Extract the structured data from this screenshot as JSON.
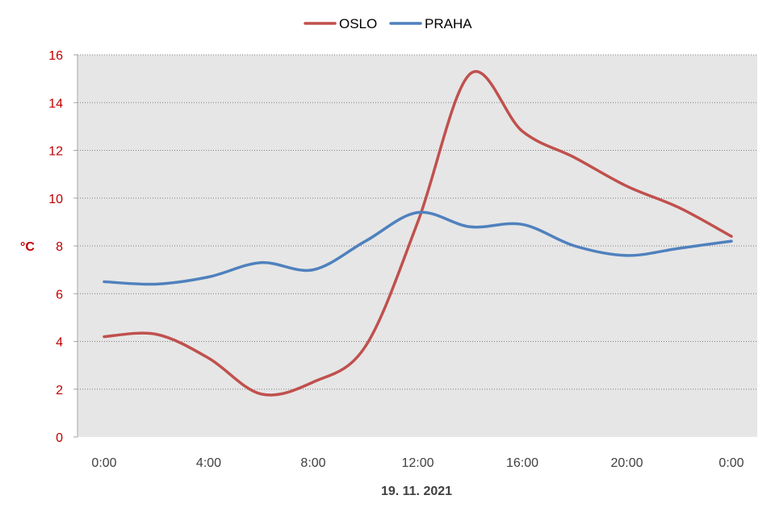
{
  "chart_data": {
    "type": "line",
    "x": [
      "0:00",
      "2:00",
      "4:00",
      "6:00",
      "8:00",
      "10:00",
      "12:00",
      "14:00",
      "16:00",
      "18:00",
      "20:00",
      "22:00",
      "0:00"
    ],
    "x_tick_labels": [
      "0:00",
      "4:00",
      "8:00",
      "12:00",
      "16:00",
      "20:00",
      "0:00"
    ],
    "xlabel": "19. 11. 2021",
    "ylabel": "°C",
    "ylim": [
      0,
      16
    ],
    "y_ticks": [
      "0",
      "2",
      "4",
      "6",
      "8",
      "10",
      "12",
      "14",
      "16"
    ],
    "grid": true,
    "legend_position": "top-center",
    "plot_background": "#e6e6e6",
    "series": [
      {
        "name": "OSLO",
        "color": "#c0504d",
        "values": [
          4.2,
          4.3,
          3.3,
          1.8,
          2.3,
          3.8,
          9.0,
          15.2,
          12.8,
          11.7,
          10.5,
          9.6,
          8.4
        ]
      },
      {
        "name": "PRAHA",
        "color": "#4f81bd",
        "values": [
          6.5,
          6.4,
          6.7,
          7.3,
          7.0,
          8.2,
          9.4,
          8.8,
          8.9,
          8.0,
          7.6,
          7.9,
          8.2
        ]
      }
    ]
  }
}
